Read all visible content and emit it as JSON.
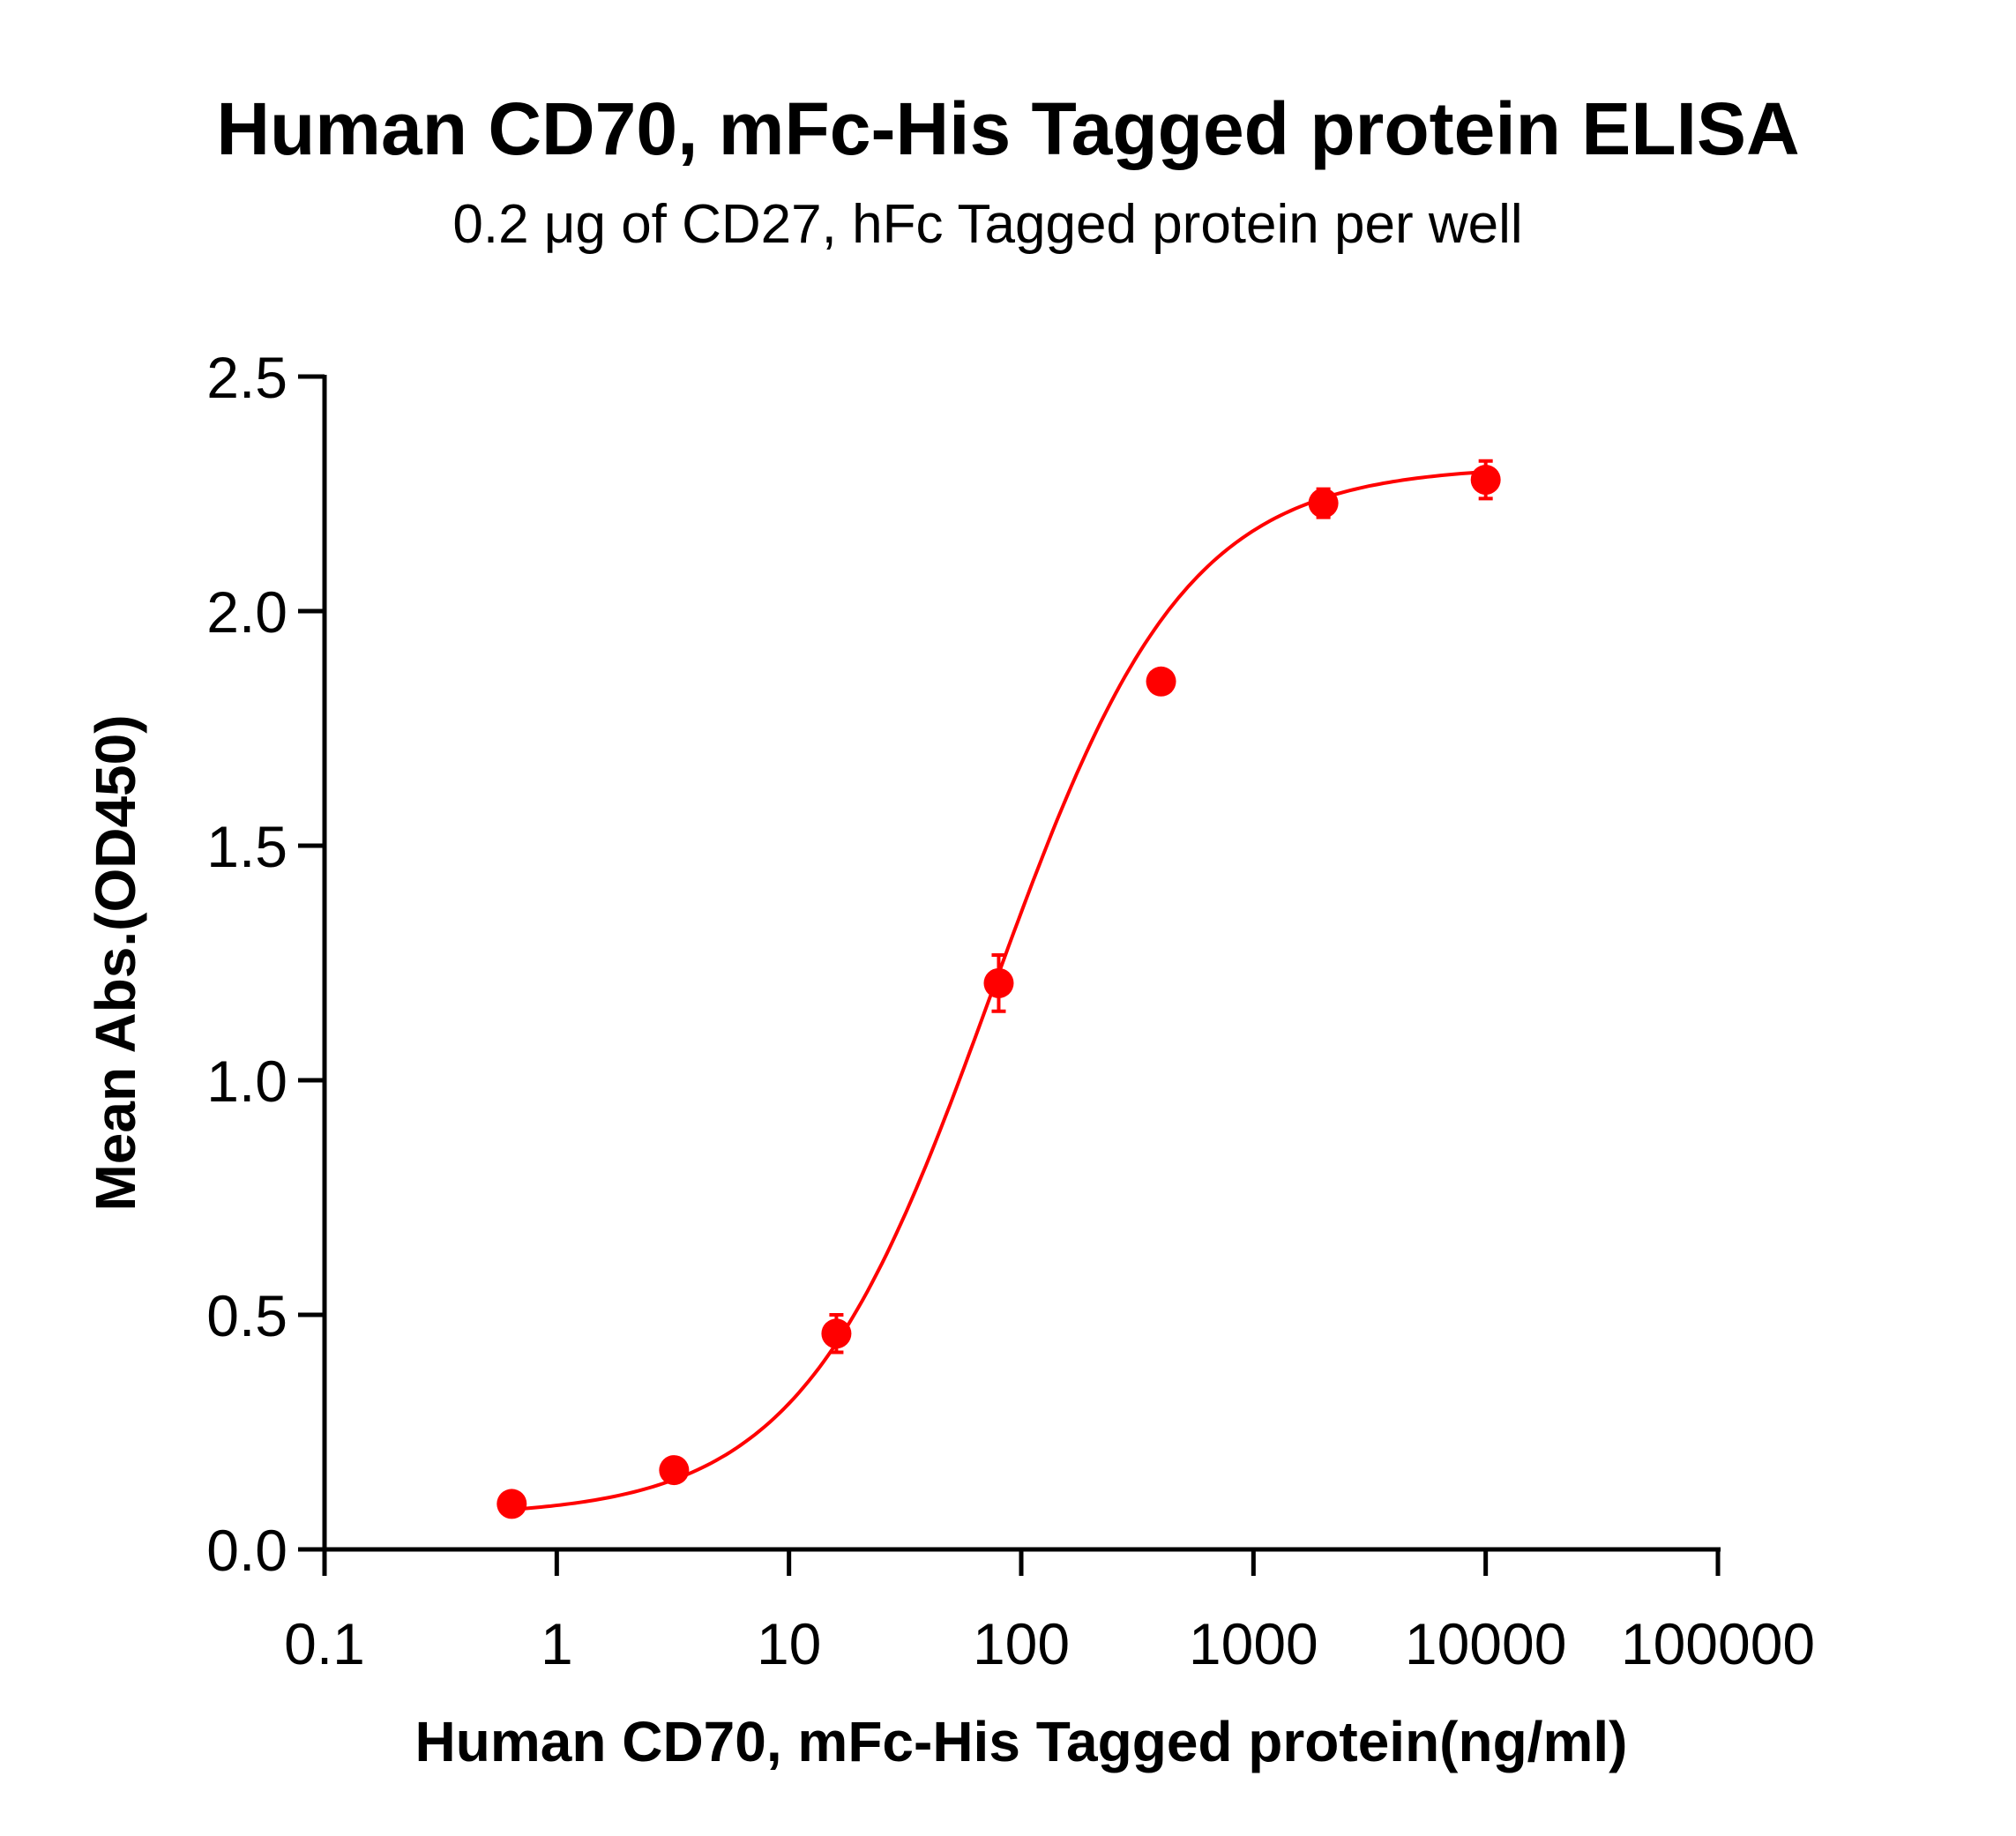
{
  "chart_data": {
    "type": "scatter",
    "title": "Human CD70, mFc-His Tagged protein ELISA",
    "subtitle": "0.2 μg of CD27, hFc Tagged protein per well",
    "xlabel": "Human CD70, mFc-His Tagged protein(ng/ml)",
    "ylabel": "Mean Abs.(OD450)",
    "xscale": "log",
    "xlim": [
      0.1,
      100000
    ],
    "ylim": [
      0,
      2.5
    ],
    "xticks": [
      "0.1",
      "1",
      "10",
      "100",
      "1000",
      "10000",
      "100000"
    ],
    "yticks": [
      "0.0",
      "0.5",
      "1.0",
      "1.5",
      "2.0",
      "2.5"
    ],
    "grid": false,
    "legend": null,
    "color": "#ff0000",
    "series": [
      {
        "name": "Human CD70, mFc-His Tagged protein",
        "x": [
          0.64,
          3.2,
          16,
          80,
          400,
          2000,
          10000
        ],
        "y": [
          0.097,
          0.169,
          0.46,
          1.207,
          1.85,
          2.23,
          2.28
        ],
        "error": [
          0.01,
          0.01,
          0.04,
          0.06,
          0.02,
          0.03,
          0.04
        ],
        "fit": "4PL sigmoidal curve"
      }
    ]
  }
}
